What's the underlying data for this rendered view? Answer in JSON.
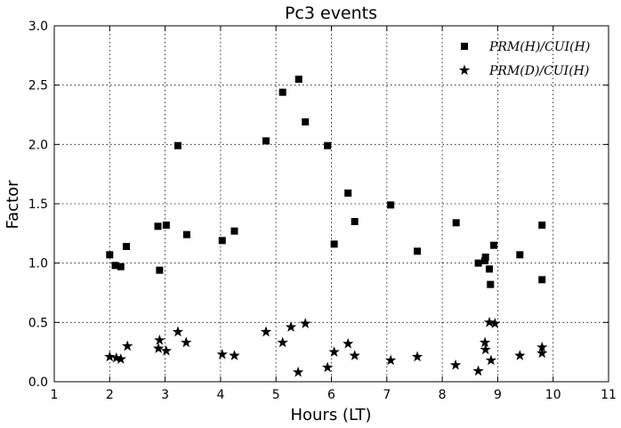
{
  "chart_data": {
    "type": "scatter",
    "title": "Pc3 events",
    "xlabel": "Hours (LT)",
    "ylabel": "Factor",
    "xlim": [
      1,
      11
    ],
    "ylim": [
      0.0,
      3.0
    ],
    "xticks": [
      1,
      2,
      3,
      4,
      5,
      6,
      7,
      8,
      9,
      10,
      11
    ],
    "xtick_labels": [
      "1",
      "2",
      "3",
      "4",
      "5",
      "6",
      "7",
      "8",
      "9",
      "10",
      "11"
    ],
    "yticks": [
      0.0,
      0.5,
      1.0,
      1.5,
      2.0,
      2.5,
      3.0
    ],
    "ytick_labels": [
      "0.0",
      "0.5",
      "1.0",
      "1.5",
      "2.0",
      "2.5",
      "3.0"
    ],
    "grid": true,
    "legend_position": "top-right",
    "series": [
      {
        "name": "PRM(H)/CUI(H)",
        "marker": "square",
        "color": "#000000",
        "x": [
          2.0,
          2.1,
          2.2,
          2.3,
          2.87,
          2.9,
          3.02,
          3.23,
          3.39,
          4.03,
          4.25,
          4.82,
          5.12,
          5.41,
          5.53,
          5.93,
          6.05,
          6.3,
          6.42,
          7.07,
          7.55,
          8.25,
          8.65,
          8.77,
          8.78,
          8.85,
          8.87,
          8.93,
          9.4,
          9.8,
          9.8
        ],
        "y": [
          1.07,
          0.98,
          0.97,
          1.14,
          1.31,
          0.94,
          1.32,
          1.99,
          1.24,
          1.19,
          1.27,
          2.03,
          2.44,
          2.55,
          2.19,
          1.99,
          1.16,
          1.59,
          1.35,
          1.49,
          1.1,
          1.34,
          1.0,
          1.02,
          1.05,
          0.95,
          0.82,
          1.15,
          1.07,
          1.32,
          0.86
        ]
      },
      {
        "name": "PRM(D)/CUI(H)",
        "marker": "star",
        "color": "#000000",
        "x": [
          2.0,
          2.12,
          2.2,
          2.32,
          2.88,
          2.9,
          3.02,
          3.23,
          3.38,
          4.03,
          4.25,
          4.82,
          5.12,
          5.27,
          5.4,
          5.53,
          5.93,
          6.05,
          6.3,
          6.42,
          7.07,
          7.55,
          8.24,
          8.65,
          8.77,
          8.78,
          8.85,
          8.88,
          8.95,
          9.4,
          9.8,
          9.8
        ],
        "y": [
          0.21,
          0.2,
          0.19,
          0.3,
          0.28,
          0.35,
          0.26,
          0.42,
          0.33,
          0.23,
          0.22,
          0.42,
          0.33,
          0.46,
          0.08,
          0.49,
          0.12,
          0.25,
          0.32,
          0.22,
          0.18,
          0.21,
          0.14,
          0.09,
          0.33,
          0.27,
          0.5,
          0.18,
          0.49,
          0.22,
          0.29,
          0.24
        ]
      }
    ]
  }
}
